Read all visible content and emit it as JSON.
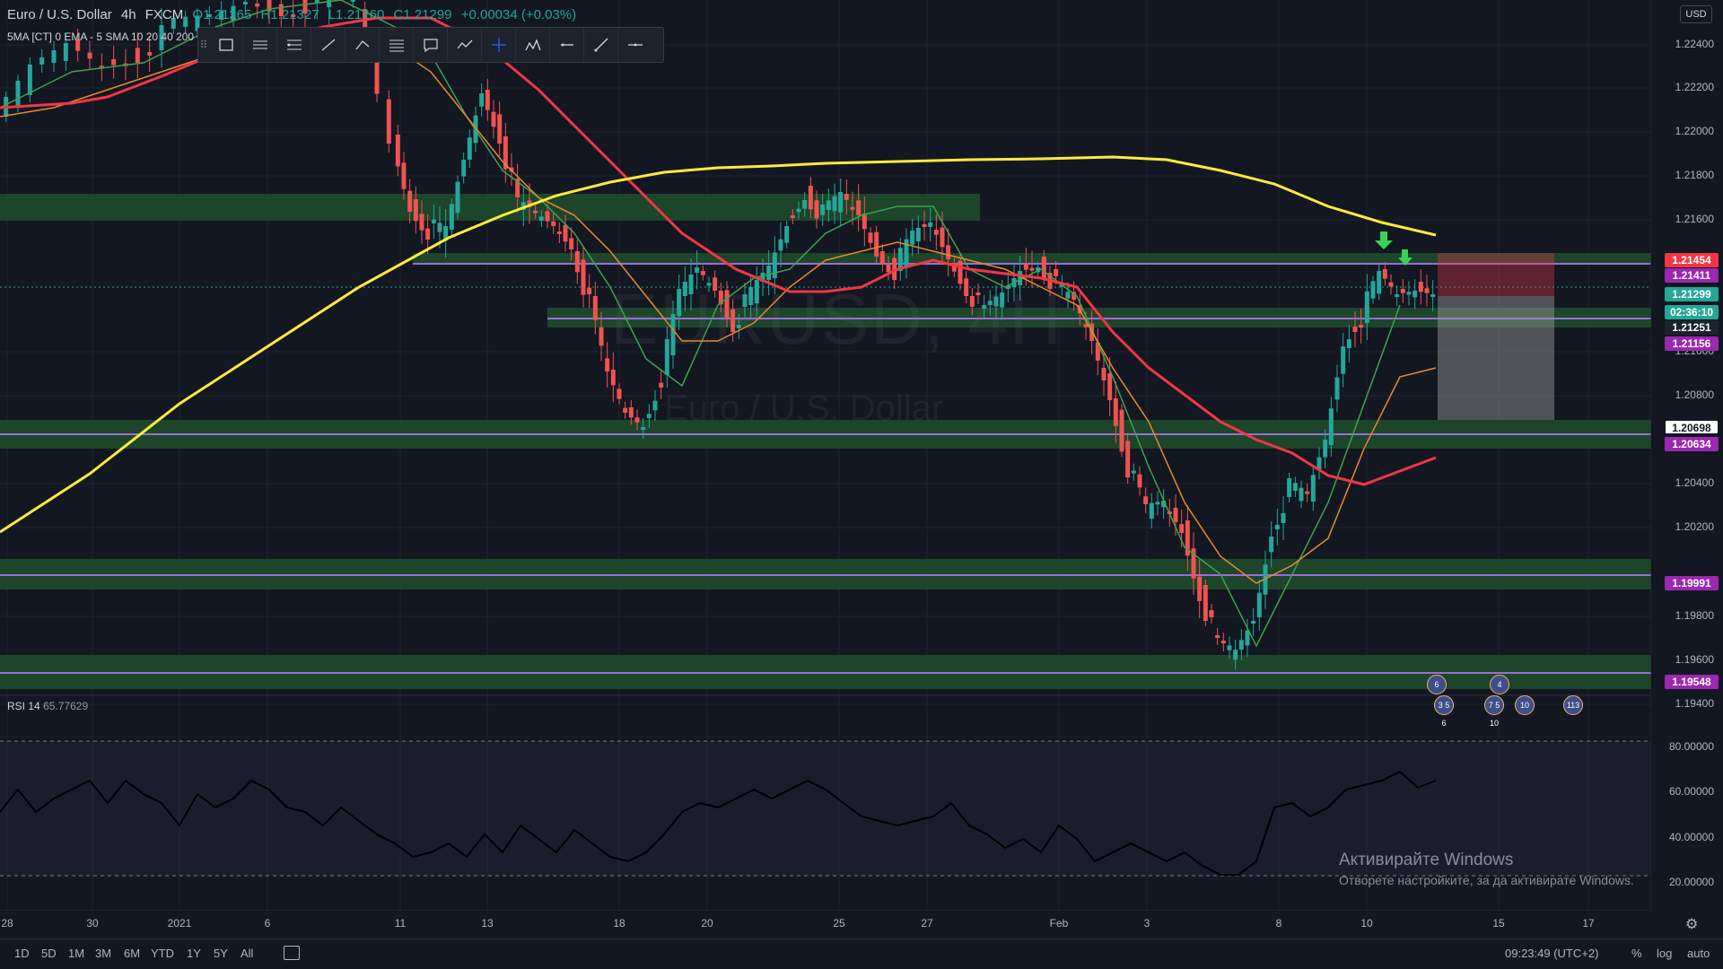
{
  "header": {
    "symbol": "Euro / U.S. Dollar",
    "interval": "4h",
    "exchange": "FXCM",
    "open": "O1.21265",
    "high": "H1.21327",
    "low": "L1.21260",
    "close": "C1.21299",
    "change": "+0.00034 (+0.03%)",
    "indicators": "5MA [CT] 0 EMA - 5 SMA 10 20 40 200"
  },
  "watermark": {
    "ticker": "EURUSD, 4H",
    "name": "Euro / U.S. Dollar"
  },
  "currency_button": "USD",
  "price_axis": {
    "labels": [
      "1.22400",
      "1.22200",
      "1.22000",
      "1.21800",
      "1.21600",
      "1.21000",
      "1.20800",
      "1.20400",
      "1.20200",
      "1.19800",
      "1.19600",
      "1.19400"
    ],
    "tags": [
      {
        "text": "1.21454",
        "color": "#f23645"
      },
      {
        "text": "1.21411",
        "color": "#9c27b0"
      },
      {
        "text": "1.21299",
        "color": "#26a69a"
      },
      {
        "text": "02:36:10",
        "color": "#26a69a"
      },
      {
        "text": "1.21251",
        "color": "#1e222d"
      },
      {
        "text": "1.21156",
        "color": "#9c27b0"
      },
      {
        "text": "1.20698",
        "color": "#ffffff"
      },
      {
        "text": "1.20634",
        "color": "#9c27b0"
      },
      {
        "text": "1.19991",
        "color": "#9c27b0"
      },
      {
        "text": "1.19548",
        "color": "#9c27b0"
      }
    ]
  },
  "rsi": {
    "label": "RSI",
    "params": "14",
    "value": "65.77629",
    "axis": [
      "80.00000",
      "60.00000",
      "40.00000",
      "20.00000"
    ]
  },
  "time_axis": [
    "28",
    "30",
    "2021",
    "6",
    "11",
    "13",
    "18",
    "20",
    "25",
    "27",
    "Feb",
    "3",
    "8",
    "10",
    "15",
    "17"
  ],
  "timeframes": [
    "1D",
    "5D",
    "1M",
    "3M",
    "6M",
    "YTD",
    "1Y",
    "5Y",
    "All"
  ],
  "clock": "09:23:49 (UTC+2)",
  "bottom_right": {
    "percent": "%",
    "log": "log",
    "auto": "auto"
  },
  "windows_notice": {
    "title": "Активирайте Windows",
    "text": "Отворете настройките, за да активирате Windows."
  },
  "events": [
    "6",
    "3 5 6",
    "4",
    "7 5 10",
    "10",
    "113"
  ],
  "toolbar_tools": [
    "rectangle-icon",
    "parallel-channel-icon",
    "fib-icon",
    "trend-line-icon",
    "path-icon",
    "horizontal-lines-icon",
    "callout-icon",
    "polyline-icon",
    "crosshair-icon",
    "pattern-icon",
    "horizontal-ray-icon",
    "ray-icon",
    "price-line-icon"
  ],
  "colors": {
    "bg": "#131722",
    "up": "#26a69a",
    "down": "#ef5350",
    "zone": "#1e4d2b",
    "sma200": "#ffeb3b",
    "sma40": "#f23645",
    "ema10": "#e68a2e",
    "ema5": "#3fa34d",
    "hline": "#9c6cd8"
  }
}
